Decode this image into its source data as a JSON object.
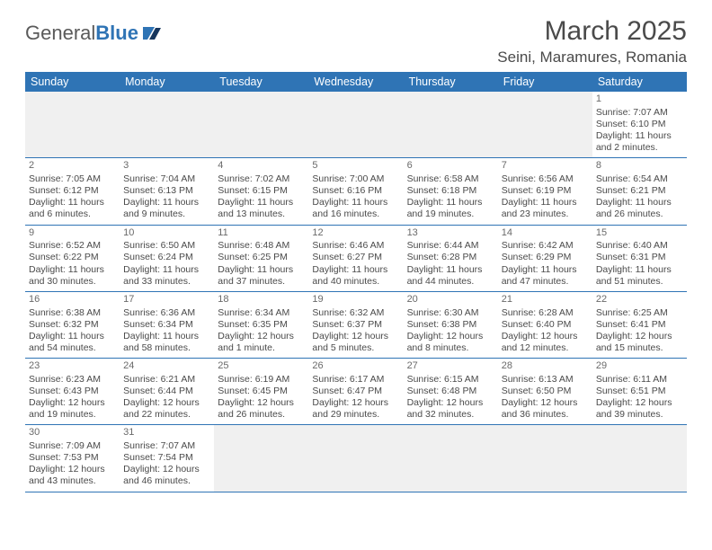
{
  "brand": {
    "name1": "General",
    "name2": "Blue"
  },
  "title": "March 2025",
  "location": "Seini, Maramures, Romania",
  "colors": {
    "header_bg": "#2f74b5",
    "header_fg": "#ffffff",
    "text": "#4a4a4a",
    "blank_bg": "#f0f0f0",
    "divider": "#2f74b5"
  },
  "day_labels": [
    "Sunday",
    "Monday",
    "Tuesday",
    "Wednesday",
    "Thursday",
    "Friday",
    "Saturday"
  ],
  "weeks": [
    [
      null,
      null,
      null,
      null,
      null,
      null,
      {
        "n": "1",
        "sunrise": "Sunrise: 7:07 AM",
        "sunset": "Sunset: 6:10 PM",
        "daylight": "Daylight: 11 hours and 2 minutes."
      }
    ],
    [
      {
        "n": "2",
        "sunrise": "Sunrise: 7:05 AM",
        "sunset": "Sunset: 6:12 PM",
        "daylight": "Daylight: 11 hours and 6 minutes."
      },
      {
        "n": "3",
        "sunrise": "Sunrise: 7:04 AM",
        "sunset": "Sunset: 6:13 PM",
        "daylight": "Daylight: 11 hours and 9 minutes."
      },
      {
        "n": "4",
        "sunrise": "Sunrise: 7:02 AM",
        "sunset": "Sunset: 6:15 PM",
        "daylight": "Daylight: 11 hours and 13 minutes."
      },
      {
        "n": "5",
        "sunrise": "Sunrise: 7:00 AM",
        "sunset": "Sunset: 6:16 PM",
        "daylight": "Daylight: 11 hours and 16 minutes."
      },
      {
        "n": "6",
        "sunrise": "Sunrise: 6:58 AM",
        "sunset": "Sunset: 6:18 PM",
        "daylight": "Daylight: 11 hours and 19 minutes."
      },
      {
        "n": "7",
        "sunrise": "Sunrise: 6:56 AM",
        "sunset": "Sunset: 6:19 PM",
        "daylight": "Daylight: 11 hours and 23 minutes."
      },
      {
        "n": "8",
        "sunrise": "Sunrise: 6:54 AM",
        "sunset": "Sunset: 6:21 PM",
        "daylight": "Daylight: 11 hours and 26 minutes."
      }
    ],
    [
      {
        "n": "9",
        "sunrise": "Sunrise: 6:52 AM",
        "sunset": "Sunset: 6:22 PM",
        "daylight": "Daylight: 11 hours and 30 minutes."
      },
      {
        "n": "10",
        "sunrise": "Sunrise: 6:50 AM",
        "sunset": "Sunset: 6:24 PM",
        "daylight": "Daylight: 11 hours and 33 minutes."
      },
      {
        "n": "11",
        "sunrise": "Sunrise: 6:48 AM",
        "sunset": "Sunset: 6:25 PM",
        "daylight": "Daylight: 11 hours and 37 minutes."
      },
      {
        "n": "12",
        "sunrise": "Sunrise: 6:46 AM",
        "sunset": "Sunset: 6:27 PM",
        "daylight": "Daylight: 11 hours and 40 minutes."
      },
      {
        "n": "13",
        "sunrise": "Sunrise: 6:44 AM",
        "sunset": "Sunset: 6:28 PM",
        "daylight": "Daylight: 11 hours and 44 minutes."
      },
      {
        "n": "14",
        "sunrise": "Sunrise: 6:42 AM",
        "sunset": "Sunset: 6:29 PM",
        "daylight": "Daylight: 11 hours and 47 minutes."
      },
      {
        "n": "15",
        "sunrise": "Sunrise: 6:40 AM",
        "sunset": "Sunset: 6:31 PM",
        "daylight": "Daylight: 11 hours and 51 minutes."
      }
    ],
    [
      {
        "n": "16",
        "sunrise": "Sunrise: 6:38 AM",
        "sunset": "Sunset: 6:32 PM",
        "daylight": "Daylight: 11 hours and 54 minutes."
      },
      {
        "n": "17",
        "sunrise": "Sunrise: 6:36 AM",
        "sunset": "Sunset: 6:34 PM",
        "daylight": "Daylight: 11 hours and 58 minutes."
      },
      {
        "n": "18",
        "sunrise": "Sunrise: 6:34 AM",
        "sunset": "Sunset: 6:35 PM",
        "daylight": "Daylight: 12 hours and 1 minute."
      },
      {
        "n": "19",
        "sunrise": "Sunrise: 6:32 AM",
        "sunset": "Sunset: 6:37 PM",
        "daylight": "Daylight: 12 hours and 5 minutes."
      },
      {
        "n": "20",
        "sunrise": "Sunrise: 6:30 AM",
        "sunset": "Sunset: 6:38 PM",
        "daylight": "Daylight: 12 hours and 8 minutes."
      },
      {
        "n": "21",
        "sunrise": "Sunrise: 6:28 AM",
        "sunset": "Sunset: 6:40 PM",
        "daylight": "Daylight: 12 hours and 12 minutes."
      },
      {
        "n": "22",
        "sunrise": "Sunrise: 6:25 AM",
        "sunset": "Sunset: 6:41 PM",
        "daylight": "Daylight: 12 hours and 15 minutes."
      }
    ],
    [
      {
        "n": "23",
        "sunrise": "Sunrise: 6:23 AM",
        "sunset": "Sunset: 6:43 PM",
        "daylight": "Daylight: 12 hours and 19 minutes."
      },
      {
        "n": "24",
        "sunrise": "Sunrise: 6:21 AM",
        "sunset": "Sunset: 6:44 PM",
        "daylight": "Daylight: 12 hours and 22 minutes."
      },
      {
        "n": "25",
        "sunrise": "Sunrise: 6:19 AM",
        "sunset": "Sunset: 6:45 PM",
        "daylight": "Daylight: 12 hours and 26 minutes."
      },
      {
        "n": "26",
        "sunrise": "Sunrise: 6:17 AM",
        "sunset": "Sunset: 6:47 PM",
        "daylight": "Daylight: 12 hours and 29 minutes."
      },
      {
        "n": "27",
        "sunrise": "Sunrise: 6:15 AM",
        "sunset": "Sunset: 6:48 PM",
        "daylight": "Daylight: 12 hours and 32 minutes."
      },
      {
        "n": "28",
        "sunrise": "Sunrise: 6:13 AM",
        "sunset": "Sunset: 6:50 PM",
        "daylight": "Daylight: 12 hours and 36 minutes."
      },
      {
        "n": "29",
        "sunrise": "Sunrise: 6:11 AM",
        "sunset": "Sunset: 6:51 PM",
        "daylight": "Daylight: 12 hours and 39 minutes."
      }
    ],
    [
      {
        "n": "30",
        "sunrise": "Sunrise: 7:09 AM",
        "sunset": "Sunset: 7:53 PM",
        "daylight": "Daylight: 12 hours and 43 minutes."
      },
      {
        "n": "31",
        "sunrise": "Sunrise: 7:07 AM",
        "sunset": "Sunset: 7:54 PM",
        "daylight": "Daylight: 12 hours and 46 minutes."
      },
      null,
      null,
      null,
      null,
      null
    ]
  ]
}
